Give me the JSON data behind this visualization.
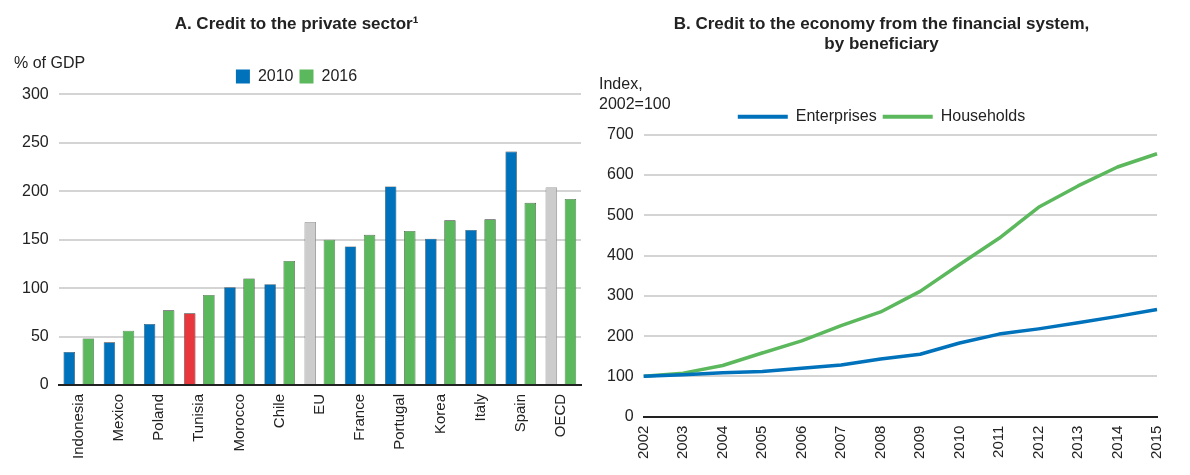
{
  "chart_data": [
    {
      "type": "bar",
      "title": "A. Credit to the private sector¹",
      "ylabel": "% of GDP",
      "categories": [
        "Indonesia",
        "Mexico",
        "Poland",
        "Tunisia",
        "Morocco",
        "Chile",
        "EU",
        "France",
        "Portugal",
        "Korea",
        "Italy",
        "Spain",
        "OECD"
      ],
      "series": [
        {
          "name": "2010",
          "color": "#0072bc",
          "colors": [
            "#0072bc",
            "#0072bc",
            "#0072bc",
            "#e8383d",
            "#0072bc",
            "#0072bc",
            "#cccccc",
            "#0072bc",
            "#0072bc",
            "#0072bc",
            "#0072bc",
            "#0072bc",
            "#cccccc"
          ],
          "values": [
            34,
            44,
            63,
            74,
            101,
            104,
            168,
            143,
            205,
            151,
            160,
            241,
            204
          ]
        },
        {
          "name": "2016",
          "color": "#5cb85c",
          "values": [
            48,
            56,
            77,
            93,
            110,
            128,
            150,
            155,
            159,
            170,
            171,
            188,
            192
          ]
        }
      ],
      "ylim": [
        0,
        300
      ],
      "yticks": [
        0,
        50,
        100,
        150,
        200,
        250,
        300
      ],
      "grid": "y",
      "legend": "top"
    },
    {
      "type": "line",
      "title": "B. Credit to the economy from the financial system, by beneficiary",
      "ylabel": "Index,\n2002=100",
      "categories": [
        "2002",
        "2003",
        "2004",
        "2005",
        "2006",
        "2007",
        "2008",
        "2009",
        "2010",
        "2011",
        "2012",
        "2013",
        "2014",
        "2015"
      ],
      "series": [
        {
          "name": "Enterprises",
          "color": "#0072bc",
          "values": [
            100,
            104,
            109,
            112,
            120,
            128,
            143,
            155,
            183,
            205,
            218,
            233,
            249,
            266
          ]
        },
        {
          "name": "Households",
          "color": "#5cb85c",
          "values": [
            100,
            108,
            127,
            158,
            188,
            226,
            260,
            311,
            378,
            443,
            520,
            573,
            620,
            653
          ]
        }
      ],
      "ylim": [
        0,
        700
      ],
      "yticks": [
        0,
        100,
        200,
        300,
        400,
        500,
        600,
        700
      ],
      "grid": "y",
      "legend": "top",
      "marker": "none",
      "line_style": "solid"
    }
  ]
}
